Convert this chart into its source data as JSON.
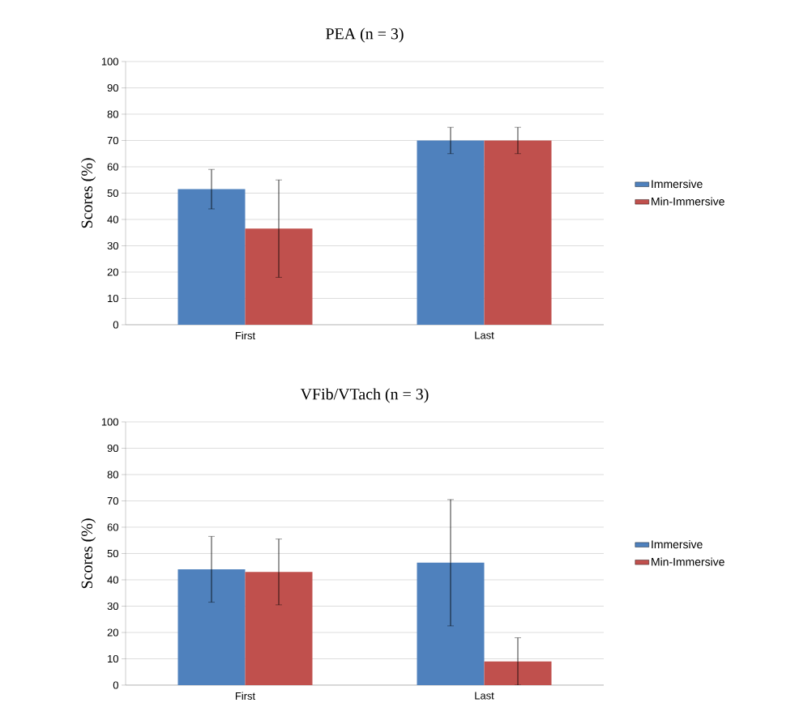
{
  "chart_data": [
    {
      "type": "bar",
      "title": "PEA (n = 3)",
      "ylabel": "Scores (%)",
      "categories": [
        "First",
        "Last"
      ],
      "series": [
        {
          "name": "Immersive",
          "color": "#4f81bd",
          "values": [
            51.5,
            70
          ],
          "errors": [
            7.5,
            5
          ]
        },
        {
          "name": "Min-Immersive",
          "color": "#c0504d",
          "values": [
            36.5,
            70
          ],
          "errors": [
            18.5,
            5
          ]
        }
      ],
      "ylim": [
        0,
        100
      ],
      "yticks": [
        0,
        10,
        20,
        30,
        40,
        50,
        60,
        70,
        80,
        90,
        100
      ],
      "grid": "y",
      "legend": "right"
    },
    {
      "type": "bar",
      "title": "VFib/VTach (n = 3)",
      "ylabel": "Scores (%)",
      "categories": [
        "First",
        "Last"
      ],
      "series": [
        {
          "name": "Immersive",
          "color": "#4f81bd",
          "values": [
            44,
            46.5
          ],
          "errors": [
            12.5,
            24
          ]
        },
        {
          "name": "Min-Immersive",
          "color": "#c0504d",
          "values": [
            43,
            9
          ],
          "errors": [
            12.5,
            9
          ]
        }
      ],
      "ylim": [
        0,
        100
      ],
      "yticks": [
        0,
        10,
        20,
        30,
        40,
        50,
        60,
        70,
        80,
        90,
        100
      ],
      "grid": "y",
      "legend": "right"
    }
  ]
}
